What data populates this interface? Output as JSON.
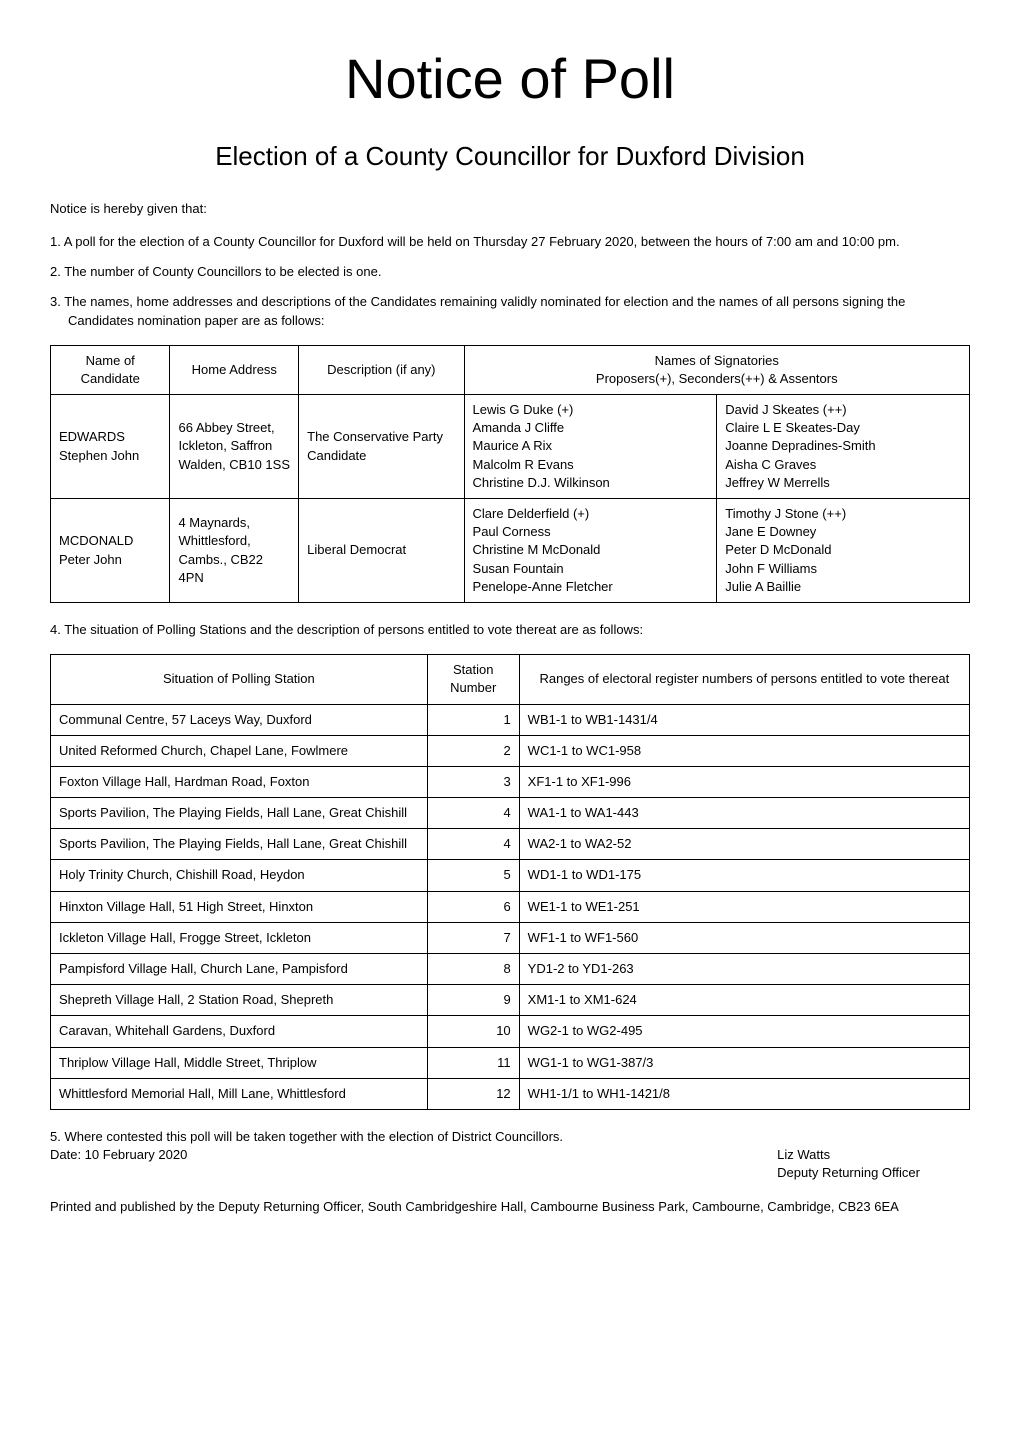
{
  "title": "Notice of Poll",
  "subtitle": "Election of a County Councillor for Duxford Division",
  "notice_intro": "Notice is hereby given that:",
  "items": [
    "1. A poll for the election of a County Councillor for Duxford will be held on Thursday 27 February 2020, between the hours of 7:00 am and 10:00 pm.",
    "2. The number of County Councillors to be elected is one.",
    "3. The names, home addresses and descriptions of the Candidates remaining validly nominated for election and the names of all persons signing the Candidates nomination paper are as follows:"
  ],
  "candidates_table": {
    "headers": {
      "name": "Name of Candidate",
      "address": "Home Address",
      "description": "Description (if any)",
      "signatories": "Names of Signatories",
      "signatories_sub": "Proposers(+), Seconders(++) & Assentors"
    },
    "rows": [
      {
        "name": "EDWARDS Stephen John",
        "address": "66 Abbey Street, Ickleton, Saffron Walden, CB10 1SS",
        "description": "The Conservative Party Candidate",
        "sig1": "Lewis G Duke (+)\nAmanda J Cliffe\nMaurice A Rix\nMalcolm R Evans\nChristine D.J. Wilkinson",
        "sig2": "David J Skeates (++)\nClaire L E Skeates-Day\nJoanne Depradines-Smith\nAisha C Graves\nJeffrey W Merrells"
      },
      {
        "name": "MCDONALD Peter John",
        "address": "4 Maynards, Whittlesford, Cambs., CB22 4PN",
        "description": "Liberal Democrat",
        "sig1": "Clare Delderfield (+)\nPaul Corness\nChristine M McDonald\nSusan Fountain\nPenelope-Anne Fletcher",
        "sig2": "Timothy J Stone (++)\nJane E Downey\nPeter D McDonald\nJohn F Williams\nJulie A Baillie"
      }
    ]
  },
  "item4": "4. The situation of Polling Stations and the description of persons entitled to vote thereat are as follows:",
  "stations_table": {
    "headers": {
      "situation": "Situation of Polling Station",
      "number": "Station Number",
      "ranges": "Ranges of electoral register numbers of persons entitled to vote thereat"
    },
    "rows": [
      {
        "situation": "Communal Centre, 57 Laceys Way, Duxford",
        "number": "1",
        "ranges": "WB1-1 to WB1-1431/4"
      },
      {
        "situation": "United Reformed Church, Chapel Lane, Fowlmere",
        "number": "2",
        "ranges": "WC1-1 to WC1-958"
      },
      {
        "situation": "Foxton Village Hall, Hardman Road, Foxton",
        "number": "3",
        "ranges": "XF1-1 to XF1-996"
      },
      {
        "situation": "Sports Pavilion, The Playing Fields, Hall Lane, Great Chishill",
        "number": "4",
        "ranges": "WA1-1 to WA1-443"
      },
      {
        "situation": "Sports Pavilion, The Playing Fields, Hall Lane, Great Chishill",
        "number": "4",
        "ranges": "WA2-1 to WA2-52"
      },
      {
        "situation": "Holy Trinity Church, Chishill Road, Heydon",
        "number": "5",
        "ranges": "WD1-1 to WD1-175"
      },
      {
        "situation": "Hinxton Village Hall, 51 High Street, Hinxton",
        "number": "6",
        "ranges": "WE1-1 to WE1-251"
      },
      {
        "situation": "Ickleton Village Hall, Frogge Street, Ickleton",
        "number": "7",
        "ranges": "WF1-1 to WF1-560"
      },
      {
        "situation": "Pampisford Village Hall, Church Lane, Pampisford",
        "number": "8",
        "ranges": "YD1-2 to YD1-263"
      },
      {
        "situation": "Shepreth Village Hall, 2 Station Road, Shepreth",
        "number": "9",
        "ranges": "XM1-1 to XM1-624"
      },
      {
        "situation": "Caravan, Whitehall Gardens, Duxford",
        "number": "10",
        "ranges": "WG2-1 to WG2-495"
      },
      {
        "situation": "Thriplow Village Hall, Middle Street, Thriplow",
        "number": "11",
        "ranges": "WG1-1 to WG1-387/3"
      },
      {
        "situation": "Whittlesford Memorial Hall, Mill Lane, Whittlesford",
        "number": "12",
        "ranges": "WH1-1/1 to WH1-1421/8"
      }
    ]
  },
  "item5": "5.  Where contested this poll will be taken together with the election of District Councillors.",
  "date_line": "Date: 10 February 2020",
  "officer_name": "Liz Watts",
  "officer_title": "Deputy Returning Officer",
  "printed_by": "Printed and published by the Deputy Returning Officer, South Cambridgeshire Hall, Cambourne Business Park, Cambourne, Cambridge, CB23 6EA"
}
